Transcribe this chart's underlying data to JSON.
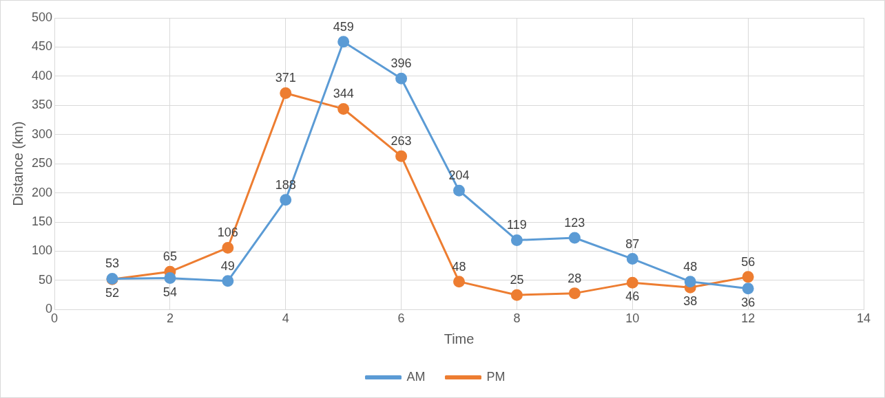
{
  "chart_data": {
    "type": "line",
    "xlabel": "Time",
    "ylabel": "Distance (km)",
    "x": [
      1,
      2,
      3,
      4,
      5,
      6,
      7,
      8,
      9,
      10,
      11,
      12
    ],
    "series": [
      {
        "name": "AM",
        "color": "#5b9bd5",
        "values": [
          53,
          54,
          49,
          188,
          459,
          396,
          204,
          119,
          123,
          87,
          48,
          36
        ]
      },
      {
        "name": "PM",
        "color": "#ed7d31",
        "values": [
          52,
          65,
          106,
          371,
          344,
          263,
          48,
          25,
          28,
          46,
          38,
          56
        ]
      }
    ],
    "xlim": [
      0,
      14
    ],
    "xticks": [
      0,
      2,
      4,
      6,
      8,
      10,
      12,
      14
    ],
    "ylim": [
      0,
      500
    ],
    "yticks": [
      0,
      50,
      100,
      150,
      200,
      250,
      300,
      350,
      400,
      450,
      500
    ],
    "grid": true,
    "legend": "bottom",
    "marker": "circle",
    "line_style": "solid",
    "data_labels": true
  }
}
